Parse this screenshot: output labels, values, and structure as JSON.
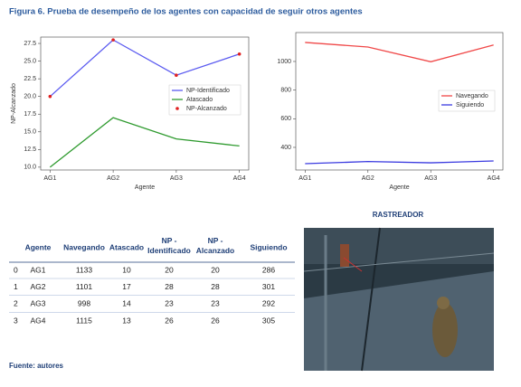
{
  "title": "Figura 6. Prueba de desempeño de los agentes con capacidad de seguir otros agentes",
  "chart_data": [
    {
      "type": "line",
      "xlabel": "Agente",
      "ylabel": "NP-Alcanzado",
      "categories": [
        "AG1",
        "AG2",
        "AG3",
        "AG4"
      ],
      "series": [
        {
          "name": "NP-Identificado",
          "color": "#5a5af0",
          "values": [
            20,
            28,
            23,
            26
          ]
        },
        {
          "name": "Atascado",
          "color": "#2e9a2e",
          "values": [
            10,
            17,
            14,
            13
          ]
        },
        {
          "name": "NP-Alcanzado",
          "color": "#e02020",
          "type": "scatter",
          "values": [
            20,
            28,
            23,
            26
          ]
        }
      ],
      "ylim": [
        9.6,
        28.4
      ],
      "yticks": [
        {
          "value": 10,
          "label": "10.0"
        },
        {
          "value": 12.5,
          "label": "12.5"
        },
        {
          "value": 15,
          "label": "15.0"
        },
        {
          "value": 17.5,
          "label": "17.5"
        },
        {
          "value": 20,
          "label": "20.0"
        },
        {
          "value": 22.5,
          "label": "22.5"
        },
        {
          "value": 25,
          "label": "25.0"
        },
        {
          "value": 27.5,
          "label": "27.5"
        }
      ],
      "legend": "right"
    },
    {
      "type": "line",
      "xlabel": "Agente",
      "categories": [
        "AG1",
        "AG2",
        "AG3",
        "AG4"
      ],
      "series": [
        {
          "name": "Navegando",
          "color": "#f04848",
          "values": [
            1133,
            1101,
            998,
            1115
          ]
        },
        {
          "name": "Siguiendo",
          "color": "#3a3ae0",
          "values": [
            286,
            301,
            292,
            305
          ]
        }
      ],
      "ylim": [
        242,
        1202
      ],
      "yticks": [
        400,
        600,
        800,
        1000
      ],
      "legend": "right"
    }
  ],
  "table": {
    "header": [
      "Agente",
      "Navegando",
      "Atascado",
      "NP - Identificado",
      "NP - Alcanzado",
      "Siguiendo"
    ],
    "rows": [
      [
        "0",
        "AG1",
        "1133",
        "10",
        "20",
        "20",
        "286"
      ],
      [
        "1",
        "AG2",
        "1101",
        "17",
        "28",
        "28",
        "301"
      ],
      [
        "2",
        "AG3",
        "998",
        "14",
        "23",
        "23",
        "292"
      ],
      [
        "3",
        "AG4",
        "1115",
        "13",
        "26",
        "26",
        "305"
      ]
    ]
  },
  "image_caption": "RASTREADOR",
  "source": "Fuente: autores"
}
